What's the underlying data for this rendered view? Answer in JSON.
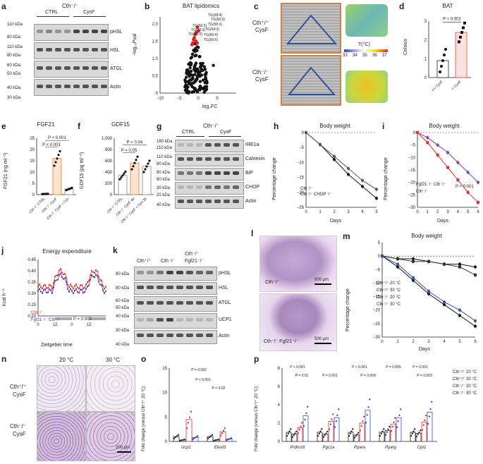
{
  "panels": {
    "a": {
      "label": "a",
      "genotype": "Cth⁻/⁻",
      "groups": [
        "CTRL",
        "CysF"
      ],
      "kda": [
        "110 kDa",
        "80 kDa",
        "110 kDa",
        "80 kDa",
        "60 kDa",
        "50 kDa",
        "40 kDa",
        "30 kDa"
      ],
      "bands": [
        "pHSL",
        "HSL",
        "ATGL",
        "Actin"
      ]
    },
    "b": {
      "label": "b",
      "title": "BAT lipidomics",
      "xlabel": "log₂FC",
      "ylabel": "−log₁₀Pval",
      "yticks": [
        "0",
        "0.5",
        "1.0",
        "1.5",
        "2.0"
      ],
      "xticks": [
        "−10",
        "−5",
        "0",
        "5"
      ],
      "annotations": [
        "TG(58:4)",
        "TG(60:3)",
        "TG(58:3)",
        "TG(56:3)",
        "TG(54:3)",
        "TG(50:3)",
        "TG(52:0)",
        "TG(56:4)",
        "TG(56:6)"
      ]
    },
    "c": {
      "label": "c",
      "row1": "Cth⁺/⁺",
      "row1b": "CysF",
      "row2": "Cth⁻/⁻",
      "row2b": "CysF",
      "scale_title": "T(°C)",
      "scale_ticks": [
        "33",
        "34",
        "35",
        "36",
        "37"
      ]
    },
    "d": {
      "label": "d",
      "title": "BAT",
      "ylabel": "Celsius",
      "pval": "P = 0.002",
      "yticks": [
        "0",
        "1",
        "2",
        "3"
      ],
      "groups": [
        "Cth⁺/⁺ CysF",
        "Cth⁻/⁻ CysF"
      ]
    },
    "e": {
      "label": "e",
      "title": "FGF21",
      "ylabel": "FGF21 (ng ml⁻¹)",
      "yticks": [
        "0",
        "5",
        "10",
        "15",
        "20",
        "25"
      ],
      "p1": "P < 0.001",
      "p2": "P < 0.001",
      "groups": [
        "Cth⁻/⁻ CTRL",
        "Cth⁻/⁻ CysF",
        "Cth⁻/⁻ CysF + Cys"
      ]
    },
    "f": {
      "label": "f",
      "title": "GDF15",
      "ylabel": "GDF15 (pg ml⁻¹)",
      "yticks": [
        "0",
        "200",
        "400",
        "600",
        "800",
        "1,000"
      ],
      "p1": "P = 0.04",
      "p2": "P = 0.05",
      "groups": [
        "Cth⁻/⁻ CTRL",
        "Cth⁻/⁻ CysF 4d",
        "Cth⁻/⁻ CysF + Cys 3d"
      ]
    },
    "g": {
      "label": "g",
      "genotype": "Cth⁻/⁻",
      "groups": [
        "CTRL",
        "CysF"
      ],
      "kda": [
        "160 kDa",
        "110 kDa",
        "110 kDa",
        "80 kDa",
        "80 kDa",
        "60 kDa",
        "30 kDa",
        "20 kDa",
        "40 kDa"
      ],
      "bands": [
        "IRE1a",
        "Calnexin",
        "BiP",
        "CHOP",
        "Actin"
      ]
    },
    "h": {
      "label": "h",
      "title": "Body weight",
      "ylabel": "Percentage change",
      "xlabel": "Days",
      "xticks": [
        "0",
        "1",
        "2",
        "3",
        "4",
        "5"
      ],
      "yticks": [
        "0",
        "−5",
        "−10",
        "−15",
        "−20",
        "−25"
      ],
      "legend": [
        "Cth⁻/⁻",
        "Cth⁻/⁻ CHOP⁻/⁻"
      ]
    },
    "i": {
      "label": "i",
      "title": "Body weight",
      "ylabel": "Percentage change",
      "xlabel": "Days",
      "xticks": [
        "0",
        "1",
        "2",
        "3",
        "4",
        "5",
        "6"
      ],
      "yticks": [
        "0",
        "−5",
        "−10",
        "−15",
        "−20",
        "−25",
        "−30"
      ],
      "legend": [
        "Fgf21⁻/⁻ Cth⁻/⁻",
        "Cth⁻/⁻"
      ],
      "pval": "P < 0.001"
    },
    "j": {
      "label": "j",
      "title": "Energy expenditure",
      "ylabel": "kcal h⁻¹",
      "xlabel": "Zeitgeber time",
      "yticks": [
        "0.20",
        "0.25",
        "0.30",
        "0.35",
        "0.40",
        "0.45"
      ],
      "xticks": [
        "0",
        "12",
        "0",
        "12"
      ],
      "legend": [
        "Cth⁻/⁻",
        "Fgf21⁻/⁻ Cth⁻/⁻"
      ],
      "pval": "P = 0.003"
    },
    "k": {
      "label": "k",
      "genotypes": [
        "Cth⁺/⁺",
        "Cth⁻/⁻",
        "Cth⁻/⁻",
        "Fgf21⁻/⁻"
      ],
      "kda": [
        "80 kDa",
        "80 kDa",
        "60 kDa",
        "50 kDa",
        "40 kDa",
        "30 kDa",
        "40 kDa"
      ],
      "bands": [
        "pHSL",
        "HSL",
        "ATGL",
        "UCP1",
        "Actin"
      ]
    },
    "l": {
      "label": "l",
      "cap1": "Cth⁻/⁻",
      "cap2": "Cth⁻/⁻ Fgf21⁻/⁻",
      "scale": "500 μm"
    },
    "m": {
      "label": "m",
      "title": "Body weight",
      "ylabel": "Percentage change",
      "xlabel": "Days",
      "xticks": [
        "0",
        "1",
        "2",
        "3",
        "4",
        "5",
        "6"
      ],
      "yticks": [
        "5",
        "0",
        "−5",
        "−10",
        "−15",
        "−20",
        "−25",
        "−30"
      ],
      "legend": [
        "Cth⁺/⁺ 20 °C",
        "Cth⁺/⁺ 30 °C",
        "Cth⁻/⁻ 20 °C",
        "Cth⁻/⁻ 30 °C"
      ]
    },
    "n": {
      "label": "n",
      "col1": "20 °C",
      "col2": "30 °C",
      "row1a": "Cth⁺/⁺",
      "row1b": "CysF",
      "row2a": "Cth⁻/⁻",
      "row2b": "CysF",
      "scale": "200 μm"
    },
    "o": {
      "label": "o",
      "ylabel": "Fold change (versus Cth⁺/⁺ 20 °C)",
      "yticks": [
        "0",
        "5",
        "10",
        "15"
      ],
      "genes": [
        "Ucp1",
        "Elovl3"
      ],
      "p1": "P = 0.002",
      "p2": "P < 0.001",
      "p3": "P = 0.02"
    },
    "p": {
      "label": "p",
      "ylabel": "Fold change (versus Cth⁺/⁺ 20 °C)",
      "yticks": [
        "0",
        "2",
        "4",
        "6",
        "8"
      ],
      "genes": [
        "Prdm16",
        "Pgc1a",
        "Ppara",
        "Pparg",
        "Cpt1"
      ],
      "pvals": [
        "P < 0.001",
        "P = 0.01",
        "P < 0.001",
        "P = 0.001",
        "P = 0.009",
        "P = 0.005",
        "P = 0.001",
        "P = 0.003"
      ],
      "legend": [
        "Cth⁺/⁺ 20 °C",
        "Cth⁺/⁺ 30 °C",
        "Cth⁻/⁻ 20 °C",
        "Cth⁻/⁻ 30 °C"
      ]
    }
  },
  "chart_data": [
    {
      "type": "bar",
      "title": "BAT",
      "ylabel": "Celsius",
      "categories": [
        "Cth+/+ CysF",
        "Cth-/- CysF"
      ],
      "values": [
        0.9,
        2.4
      ],
      "ylim": [
        0,
        3
      ]
    },
    {
      "type": "bar",
      "title": "FGF21",
      "ylabel": "FGF21 (ng ml-1)",
      "categories": [
        "CTRL",
        "CysF",
        "CysF + Cys"
      ],
      "values": [
        0.3,
        16,
        2.5
      ],
      "ylim": [
        0,
        25
      ]
    },
    {
      "type": "bar",
      "title": "GDF15",
      "ylabel": "GDF15 (pg ml-1)",
      "categories": [
        "CTRL",
        "CysF 4d",
        "CysF + Cys 3d"
      ],
      "values": [
        340,
        560,
        500
      ],
      "ylim": [
        0,
        1000
      ]
    },
    {
      "type": "line",
      "title": "Body weight (h)",
      "x": [
        0,
        1,
        2,
        3,
        4,
        5
      ],
      "series": [
        {
          "name": "Cth-/-",
          "values": [
            0,
            -4,
            -9,
            -14,
            -18,
            -22
          ]
        },
        {
          "name": "Cth-/- CHOP-/-",
          "values": [
            0,
            -4,
            -8,
            -12,
            -16,
            -19
          ]
        }
      ],
      "ylim": [
        -25,
        0
      ]
    },
    {
      "type": "line",
      "title": "Body weight (i)",
      "x": [
        0,
        1,
        2,
        3,
        4,
        5,
        6
      ],
      "series": [
        {
          "name": "Fgf21-/- Cth-/-",
          "values": [
            0,
            -2,
            -5,
            -8,
            -12,
            -16,
            -20
          ]
        },
        {
          "name": "Cth-/-",
          "values": [
            0,
            -4,
            -9,
            -14,
            -19,
            -24,
            -28
          ]
        }
      ],
      "ylim": [
        -30,
        0
      ]
    },
    {
      "type": "line",
      "title": "Body weight (m)",
      "x": [
        0,
        1,
        2,
        3,
        4,
        5,
        6
      ],
      "series": [
        {
          "name": "Cth+/+ 20 C",
          "values": [
            0,
            -1,
            -1,
            -2,
            -3,
            -3,
            -4
          ]
        },
        {
          "name": "Cth+/+ 30 C",
          "values": [
            0,
            -1,
            -2,
            -2,
            -3,
            -4,
            -7
          ]
        },
        {
          "name": "Cth-/- 20 C",
          "values": [
            0,
            -4,
            -9,
            -14,
            -18,
            -22,
            -26
          ]
        },
        {
          "name": "Cth-/- 30 C",
          "values": [
            0,
            -3,
            -8,
            -13,
            -17,
            -20,
            -24
          ]
        }
      ],
      "ylim": [
        -30,
        5
      ]
    },
    {
      "type": "bar",
      "title": "Thermogenic genes (o)",
      "categories": [
        "Ucp1",
        "Elovl3"
      ],
      "series": [
        {
          "name": "Cth+/+ 20 C",
          "values": [
            1,
            1
          ]
        },
        {
          "name": "Cth+/+ 30 C",
          "values": [
            0.3,
            0.3
          ]
        },
        {
          "name": "Cth-/- 20 C",
          "values": [
            4.5,
            2
          ]
        },
        {
          "name": "Cth-/- 30 C",
          "values": [
            0.8,
            0.5
          ]
        }
      ],
      "ylim": [
        0,
        15
      ]
    },
    {
      "type": "bar",
      "title": "Genes (p)",
      "categories": [
        "Prdm16",
        "Pgc1a",
        "Ppara",
        "Pparg",
        "Cpt1"
      ],
      "series": [
        {
          "name": "Cth+/+ 20 C",
          "values": [
            1,
            1,
            1,
            1,
            1
          ]
        },
        {
          "name": "Cth+/+ 30 C",
          "values": [
            0.8,
            0.8,
            0.7,
            1.2,
            0.9
          ]
        },
        {
          "name": "Cth-/- 20 C",
          "values": [
            1.5,
            2.2,
            2.0,
            1.9,
            2.1
          ]
        },
        {
          "name": "Cth-/- 30 C",
          "values": [
            2.8,
            2.6,
            3.4,
            2.6,
            3.2
          ]
        }
      ],
      "ylim": [
        0,
        8
      ]
    }
  ]
}
